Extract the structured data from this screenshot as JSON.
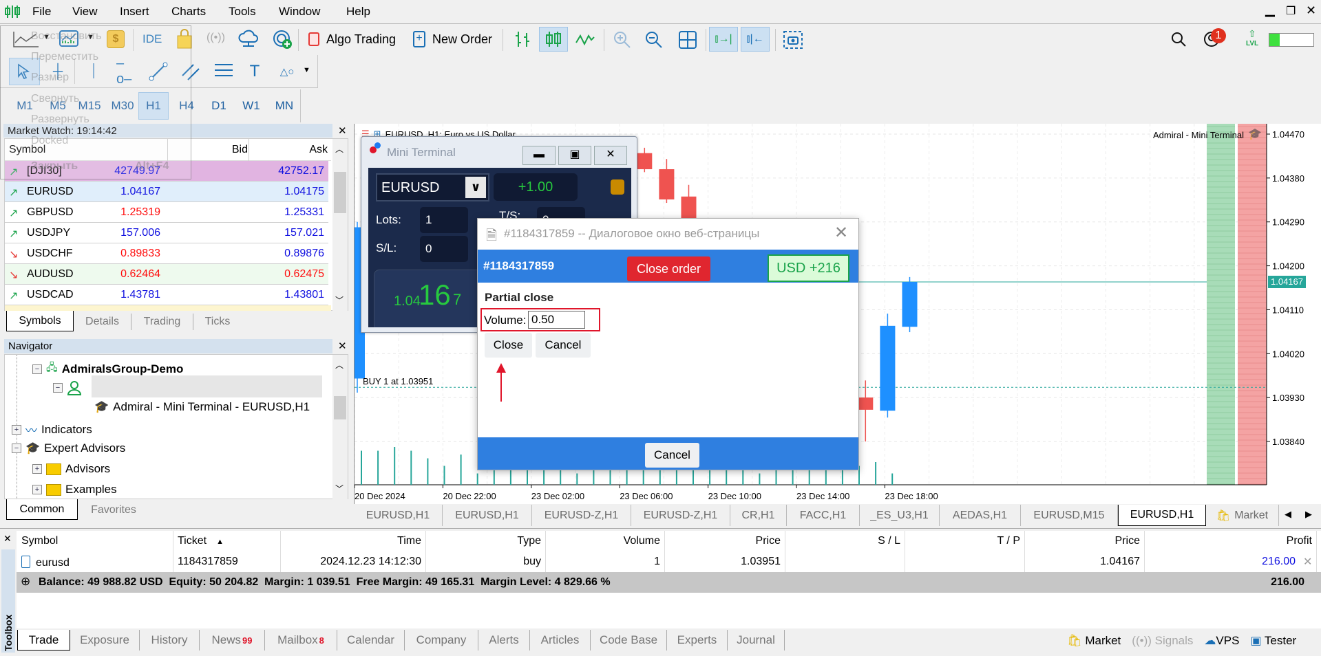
{
  "menu": [
    "File",
    "View",
    "Insert",
    "Charts",
    "Tools",
    "Window",
    "Help"
  ],
  "toolbar": {
    "ide": "IDE",
    "algo_trading": "Algo Trading",
    "new_order": "New Order",
    "notifications_count": "1",
    "level_progress": 0.23,
    "lvl_label": "LVL"
  },
  "timeframes": [
    "M1",
    "M5",
    "M15",
    "M30",
    "H1",
    "H4",
    "D1",
    "W1",
    "MN"
  ],
  "selected_timeframe": "H1",
  "ghost_menu": {
    "items": [
      "Восстановить",
      "Переместить",
      "Размер",
      "Свернуть",
      "Развернуть",
      "Docked",
      "Закрыть"
    ],
    "shortcut": "Alt+F4"
  },
  "market_watch": {
    "title": "Market Watch: 19:14:42",
    "columns": [
      "Symbol",
      "Bid",
      "Ask"
    ],
    "rows": [
      {
        "symbol": "[DJI30]",
        "bid": "42749.97",
        "ask": "42752.17",
        "dir": "up",
        "bid_color": "#1010e0",
        "ask_color": "#1010e0",
        "bg": "#e1b4e1"
      },
      {
        "symbol": "EURUSD",
        "bid": "1.04167",
        "ask": "1.04175",
        "dir": "up",
        "bid_color": "#1010e0",
        "ask_color": "#1010e0",
        "bg": "#e0eefb"
      },
      {
        "symbol": "GBPUSD",
        "bid": "1.25319",
        "ask": "1.25331",
        "dir": "up",
        "bid_color": "#ff1010",
        "ask_color": "#1010e0",
        "bg": "#ffffff"
      },
      {
        "symbol": "USDJPY",
        "bid": "157.006",
        "ask": "157.021",
        "dir": "up",
        "bid_color": "#1010e0",
        "ask_color": "#1010e0",
        "bg": "#ffffff"
      },
      {
        "symbol": "USDCHF",
        "bid": "0.89833",
        "ask": "0.89876",
        "dir": "down",
        "bid_color": "#ff1010",
        "ask_color": "#1010e0",
        "bg": "#ffffff"
      },
      {
        "symbol": "AUDUSD",
        "bid": "0.62464",
        "ask": "0.62475",
        "dir": "down",
        "bid_color": "#ff1010",
        "ask_color": "#ff1010",
        "bg": "#eefaee"
      },
      {
        "symbol": "USDCAD",
        "bid": "1.43781",
        "ask": "1.43801",
        "dir": "up",
        "bid_color": "#1010e0",
        "ask_color": "#1010e0",
        "bg": "#ffffff"
      }
    ],
    "tabs": [
      "Symbols",
      "Details",
      "Trading",
      "Ticks"
    ]
  },
  "navigator": {
    "title": "Navigator",
    "server": "AdmiralsGroup-Demo",
    "ea_instance": "Admiral - Mini Terminal - EURUSD,H1",
    "indicators": "Indicators",
    "expert_advisors": "Expert Advisors",
    "advisors": "Advisors",
    "examples": "Examples",
    "tabs": [
      "Common",
      "Favorites"
    ]
  },
  "chart": {
    "title": "EURUSD, H1:  Euro vs US Dollar",
    "ea_label": "Admiral - Mini Terminal",
    "buy_label": "BUY 1 at 1.03951",
    "current_price": "1.04167",
    "price_ticks": [
      "1.04470",
      "1.04380",
      "1.04290",
      "1.04200",
      "1.04110",
      "1.04020",
      "1.03930",
      "1.03840"
    ],
    "time_ticks": [
      "20 Dec 2024",
      "20 Dec 22:00",
      "23 Dec 02:00",
      "23 Dec 06:00",
      "23 Dec 10:00",
      "23 Dec 14:00",
      "23 Dec 18:00"
    ],
    "candles": [
      {
        "time": "2024.12.20 18:00",
        "open": 1.03969,
        "high": 1.0429,
        "low": 1.0394,
        "close": 1.04279
      },
      {
        "time": "2024.12.23 07:00",
        "open": 1.04431,
        "high": 1.04442,
        "low": 1.04392,
        "close": 1.04398
      },
      {
        "time": "2024.12.23 08:00",
        "open": 1.04398,
        "high": 1.04419,
        "low": 1.04329,
        "close": 1.04336
      },
      {
        "time": "2024.12.23 09:00",
        "open": 1.04342,
        "high": 1.04366,
        "low": 1.0427,
        "close": 1.0428
      },
      {
        "time": "2024.12.23 17:00",
        "open": 1.0393,
        "high": 1.03965,
        "low": 1.0384,
        "close": 1.03905
      },
      {
        "time": "2024.12.23 18:00",
        "open": 1.03903,
        "high": 1.04102,
        "low": 1.03889,
        "close": 1.04077
      },
      {
        "time": "2024.12.23 19:00",
        "open": 1.04075,
        "high": 1.04177,
        "low": 1.04064,
        "close": 1.04167
      }
    ],
    "volumes": [
      9,
      9,
      10,
      9,
      7,
      5,
      8,
      3,
      7,
      6,
      8,
      5,
      8,
      3,
      7,
      6,
      7,
      4,
      9,
      6,
      8,
      5,
      9,
      4,
      3,
      8,
      6,
      9,
      7,
      8,
      5,
      6,
      3
    ],
    "up_color": "#1e90ff",
    "down_color": "#ef5350",
    "volume_color": "#26a69a",
    "tabs": [
      "EURUSD,H1",
      "EURUSD,H1",
      "EURUSD-Z,H1",
      "EURUSD-Z,H1",
      "CR,H1",
      "FACC,H1",
      "_ES_U3,H1",
      "AEDAS,H1",
      "EURUSD,M15",
      "EURUSD,H1",
      "Market"
    ]
  },
  "mini_terminal": {
    "title": "Mini Terminal",
    "symbol": "EURUSD",
    "volume": "+1.00",
    "lots_label": "Lots:",
    "lots": "1",
    "sl_label": "S/L:",
    "sl": "0",
    "tp_label": "T/S:",
    "tp": "0",
    "price_prefix": "1.04",
    "price_big": "16",
    "price_suffix": "7"
  },
  "dialog": {
    "title": "#1184317859 -- Диалоговое окно веб-страницы",
    "ticket": "#1184317859",
    "close_order": "Close order",
    "profit": "USD +216",
    "partial_close": "Partial close",
    "volume_label": "Volume:",
    "volume_value": "0.50",
    "close": "Close",
    "cancel": "Cancel",
    "footer_cancel": "Cancel"
  },
  "toolbox": {
    "label": "Toolbox",
    "columns": [
      "Symbol",
      "Ticket",
      "Time",
      "Type",
      "Volume",
      "Price",
      "S / L",
      "T / P",
      "Price",
      "Profit"
    ],
    "sort_column": "Ticket",
    "row": {
      "symbol": "eurusd",
      "ticket": "1184317859",
      "time": "2024.12.23 14:12:30",
      "type": "buy",
      "volume": "1",
      "price": "1.03951",
      "sl": "",
      "tp": "",
      "current_price": "1.04167",
      "profit": "216.00"
    },
    "summary": "Balance: 49 988.82 USD  Equity: 50 204.82  Margin: 1 039.51  Free Margin: 49 165.31  Margin Level: 4 829.66 %",
    "summary_profit": "216.00",
    "tabs": [
      {
        "label": "Trade"
      },
      {
        "label": "Exposure"
      },
      {
        "label": "History"
      },
      {
        "label": "News",
        "badge": "99"
      },
      {
        "label": "Mailbox",
        "badge": "8"
      },
      {
        "label": "Calendar"
      },
      {
        "label": "Company"
      },
      {
        "label": "Alerts"
      },
      {
        "label": "Articles"
      },
      {
        "label": "Code Base"
      },
      {
        "label": "Experts"
      },
      {
        "label": "Journal"
      }
    ],
    "right": [
      "Market",
      "Signals",
      "VPS",
      "Tester"
    ]
  }
}
